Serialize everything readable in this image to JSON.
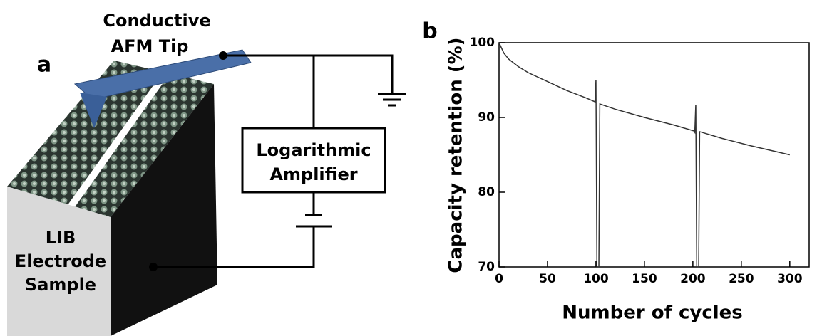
{
  "panel_a": {
    "label": "a",
    "tip_label": [
      "Conductive",
      "AFM Tip"
    ],
    "amplifier_label": [
      "Logarithmic",
      "Amplifier"
    ],
    "sample_label": [
      "LIB",
      "Electrode",
      "Sample"
    ]
  },
  "chart_data": {
    "type": "line",
    "panel_label": "b",
    "xlabel": "Number of cycles",
    "ylabel": "Capacity retention (%)",
    "x": [
      0,
      5,
      10,
      20,
      30,
      50,
      70,
      90,
      99,
      100,
      101,
      103,
      104,
      120,
      150,
      180,
      201,
      202,
      203,
      204,
      206,
      207,
      230,
      260,
      300
    ],
    "values": [
      100,
      98.6,
      97.8,
      96.8,
      96,
      94.8,
      93.6,
      92.6,
      92.1,
      95,
      70,
      70,
      91.8,
      91.1,
      90,
      89,
      88.2,
      88,
      91.7,
      70,
      70,
      88.1,
      87.2,
      86.2,
      85
    ],
    "color": "#333333",
    "xlim": [
      0,
      320
    ],
    "xticks": [
      0,
      50,
      100,
      150,
      200,
      250,
      300
    ],
    "ylim": [
      70,
      100
    ],
    "yticks": [
      70,
      80,
      90,
      100
    ]
  }
}
